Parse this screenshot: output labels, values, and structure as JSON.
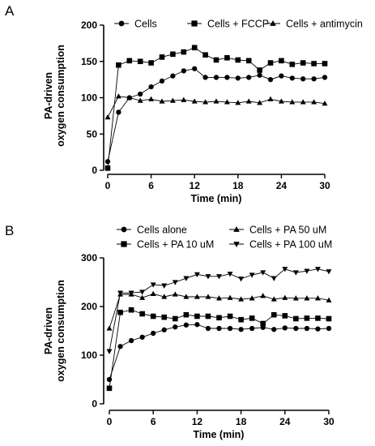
{
  "chart_data": [
    {
      "panel": "A",
      "type": "line",
      "xlabel": "Time (min)",
      "ylabel": [
        "PA-driven",
        "oxygen consumption"
      ],
      "xlim": [
        0,
        30
      ],
      "ylim": [
        0,
        200
      ],
      "xticks": [
        0,
        6,
        12,
        18,
        24,
        30
      ],
      "yticks": [
        0,
        50,
        100,
        150,
        200
      ],
      "grid": false,
      "legend_position": "top",
      "series": [
        {
          "name": "Cells",
          "marker": "circle",
          "x": [
            0,
            1.5,
            3,
            4.5,
            6,
            7.5,
            9,
            10.5,
            12,
            13.5,
            15,
            16.5,
            18,
            19.5,
            21,
            22.5,
            24,
            25.5,
            27,
            28.5,
            30
          ],
          "y": [
            12,
            80,
            100,
            105,
            115,
            123,
            130,
            137,
            140,
            128,
            128,
            128,
            127,
            128,
            131,
            125,
            130,
            127,
            126,
            126,
            128
          ]
        },
        {
          "name": "Cells + FCCP",
          "marker": "square",
          "x": [
            0,
            1.5,
            3,
            4.5,
            6,
            7.5,
            9,
            10.5,
            12,
            13.5,
            15,
            16.5,
            18,
            19.5,
            21,
            22.5,
            24,
            25.5,
            27,
            28.5,
            30
          ],
          "y": [
            3,
            145,
            151,
            150,
            148,
            156,
            160,
            163,
            169,
            159,
            152,
            155,
            152,
            151,
            138,
            148,
            151,
            146,
            148,
            147,
            147
          ]
        },
        {
          "name": "Cells + antimycin",
          "marker": "triangle-up",
          "x": [
            0,
            1.5,
            3,
            4.5,
            6,
            7.5,
            9,
            10.5,
            12,
            13.5,
            15,
            16.5,
            18,
            19.5,
            21,
            22.5,
            24,
            25.5,
            27,
            28.5,
            30
          ],
          "y": [
            73,
            102,
            100,
            96,
            98,
            95,
            96,
            97,
            95,
            94,
            95,
            94,
            93,
            95,
            93,
            98,
            95,
            94,
            94,
            94,
            92
          ]
        }
      ]
    },
    {
      "panel": "B",
      "type": "line",
      "xlabel": "Time (min)",
      "ylabel": [
        "PA-driven",
        "oxygen consumption"
      ],
      "xlim": [
        0,
        30
      ],
      "ylim": [
        0,
        300
      ],
      "xticks": [
        0,
        6,
        12,
        18,
        24,
        30
      ],
      "yticks": [
        0,
        100,
        200,
        300
      ],
      "grid": false,
      "legend_position": "top",
      "series": [
        {
          "name": "Cells alone",
          "marker": "circle",
          "x": [
            0,
            1.5,
            3,
            4.5,
            6,
            7.5,
            9,
            10.5,
            12,
            13.5,
            15,
            16.5,
            18,
            19.5,
            21,
            22.5,
            24,
            25.5,
            27,
            28.5,
            30
          ],
          "y": [
            50,
            118,
            130,
            137,
            145,
            152,
            158,
            162,
            163,
            155,
            155,
            155,
            153,
            155,
            157,
            153,
            156,
            155,
            155,
            154,
            155
          ]
        },
        {
          "name": "Cells + PA 10 uM",
          "marker": "square",
          "x": [
            0,
            1.5,
            3,
            4.5,
            6,
            7.5,
            9,
            10.5,
            12,
            13.5,
            15,
            16.5,
            18,
            19.5,
            21,
            22.5,
            24,
            25.5,
            27,
            28.5,
            30
          ],
          "y": [
            32,
            188,
            193,
            185,
            180,
            178,
            175,
            183,
            180,
            180,
            177,
            180,
            173,
            176,
            165,
            183,
            181,
            175,
            176,
            176,
            175
          ]
        },
        {
          "name": "Cells + PA 50 uM",
          "marker": "triangle-up",
          "x": [
            0,
            1.5,
            3,
            4.5,
            6,
            7.5,
            9,
            10.5,
            12,
            13.5,
            15,
            16.5,
            18,
            19.5,
            21,
            22.5,
            24,
            25.5,
            27,
            28.5,
            30
          ],
          "y": [
            155,
            225,
            225,
            218,
            226,
            220,
            225,
            220,
            220,
            220,
            217,
            218,
            215,
            217,
            222,
            215,
            218,
            217,
            217,
            217,
            213
          ]
        },
        {
          "name": "Cells + PA 100 uM",
          "marker": "triangle-down",
          "x": [
            0,
            1.5,
            3,
            4.5,
            6,
            7.5,
            9,
            10.5,
            12,
            13.5,
            15,
            16.5,
            18,
            19.5,
            21,
            22.5,
            24,
            25.5,
            27,
            28.5,
            30
          ],
          "y": [
            108,
            228,
            228,
            230,
            245,
            243,
            250,
            258,
            266,
            262,
            262,
            267,
            257,
            265,
            270,
            258,
            277,
            270,
            273,
            277,
            272
          ]
        }
      ]
    }
  ]
}
